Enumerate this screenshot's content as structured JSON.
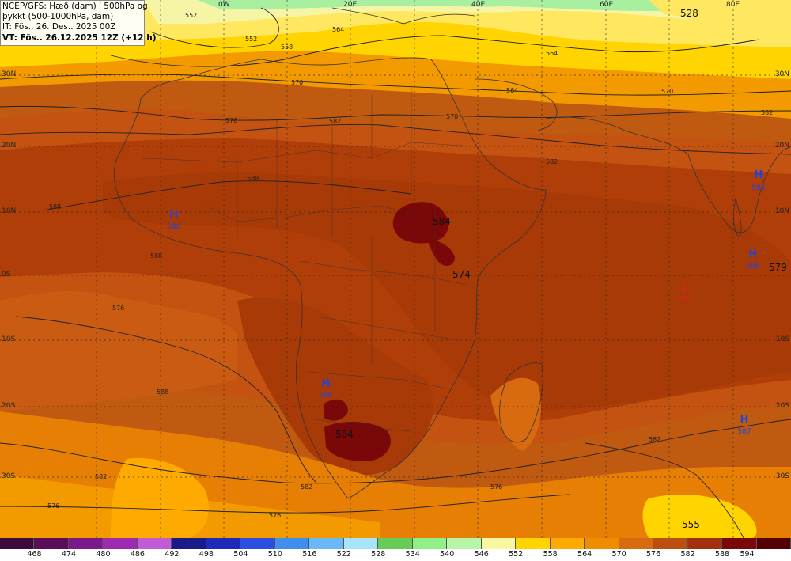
{
  "header": {
    "line1": "NCEP/GFS: Hæð (dam) í 500hPa og",
    "line2": "þykkt (500-1000hPa, dam)",
    "line3": "IT: Fös.. 26. Des.. 2025 00Z",
    "line4": "VT: Fös.. 26.12.2025 12Z (+12 h)"
  },
  "lon_labels": [
    "0W",
    "20E",
    "40E",
    "60E",
    "80E"
  ],
  "lat_labels": [
    "30N",
    "20N",
    "10N",
    "0S",
    "10S",
    "20S",
    "30S"
  ],
  "contour_labels": [
    "552",
    "552",
    "564",
    "558",
    "564",
    "570",
    "576",
    "582",
    "588",
    "588",
    "588",
    "588",
    "576",
    "582",
    "582",
    "576",
    "570",
    "564",
    "582",
    "582",
    "582",
    "576",
    "576",
    "570"
  ],
  "big_values": {
    "v528": "528",
    "v584a": "584",
    "v574": "574",
    "v584b": "584",
    "v579": "579",
    "v555": "555"
  },
  "pressure_centers": [
    {
      "type": "H",
      "value": "590"
    },
    {
      "type": "H",
      "value": "590"
    },
    {
      "type": "H",
      "value": "586"
    },
    {
      "type": "H",
      "value": "586"
    },
    {
      "type": "H",
      "value": "587"
    },
    {
      "type": "L",
      "value": "581"
    }
  ],
  "legend": {
    "ticks": [
      "468",
      "474",
      "480",
      "486",
      "492",
      "498",
      "504",
      "510",
      "516",
      "522",
      "528",
      "534",
      "540",
      "546",
      "552",
      "558",
      "564",
      "570",
      "576",
      "582",
      "588",
      "594"
    ],
    "colors": [
      "#3d0a3d",
      "#5a0e5a",
      "#7a1a8a",
      "#9d2ab0",
      "#c25cd6",
      "#1a1a8a",
      "#1e2ab8",
      "#2a4ee0",
      "#3f8ef0",
      "#6ab8f8",
      "#a8e4fa",
      "#66cc55",
      "#8ff088",
      "#b8f5a8",
      "#f8f8a0",
      "#ffd400",
      "#ffaa00",
      "#f08c00",
      "#d86a10",
      "#bd4e10",
      "#a23010",
      "#7a0808",
      "#550000"
    ]
  }
}
